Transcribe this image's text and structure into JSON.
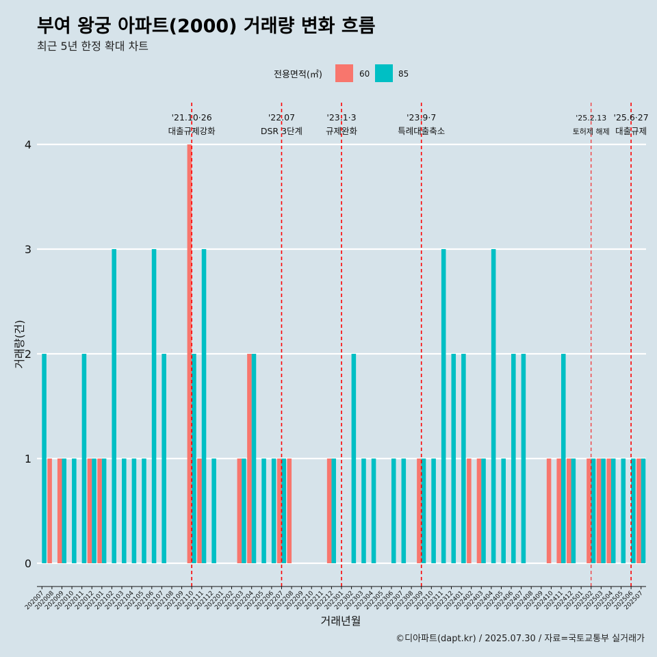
{
  "title": "부여 왕궁 아파트(2000) 거래량 변화 흐름",
  "subtitle": "최근 5년 한정 확대 차트",
  "caption": "©디아파트(dapt.kr) / 2025.07.30 / 자료=국토교통부 실거래가",
  "chart_data": {
    "type": "bar",
    "xlabel": "거래년월",
    "ylabel": "거래량(건)",
    "ylim": [
      0,
      4
    ],
    "yticks": [
      0,
      1,
      2,
      3,
      4
    ],
    "legend": {
      "title": "전용면적(㎡)",
      "position": "top"
    },
    "categories": [
      "202007",
      "202008",
      "202009",
      "202010",
      "202011",
      "202012",
      "202101",
      "202102",
      "202103",
      "202104",
      "202105",
      "202106",
      "202107",
      "202108",
      "202109",
      "202110",
      "202111",
      "202112",
      "202201",
      "202202",
      "202203",
      "202204",
      "202205",
      "202206",
      "202207",
      "202208",
      "202209",
      "202210",
      "202211",
      "202212",
      "202301",
      "202302",
      "202303",
      "202304",
      "202305",
      "202306",
      "202307",
      "202308",
      "202309",
      "202310",
      "202311",
      "202312",
      "202401",
      "202402",
      "202403",
      "202404",
      "202405",
      "202406",
      "202407",
      "202408",
      "202409",
      "202410",
      "202411",
      "202412",
      "202501",
      "202502",
      "202503",
      "202504",
      "202505",
      "202506",
      "202507"
    ],
    "series": [
      {
        "name": "60",
        "color": "#f8766d",
        "values": [
          0,
          1,
          1,
          0,
          0,
          1,
          1,
          0,
          0,
          0,
          0,
          0,
          0,
          0,
          0,
          4,
          1,
          0,
          0,
          0,
          1,
          2,
          0,
          0,
          1,
          1,
          0,
          0,
          0,
          1,
          0,
          0,
          0,
          0,
          0,
          0,
          0,
          0,
          1,
          0,
          0,
          0,
          0,
          1,
          1,
          0,
          0,
          0,
          0,
          0,
          0,
          1,
          1,
          1,
          0,
          1,
          1,
          1,
          0,
          0,
          1
        ]
      },
      {
        "name": "85",
        "color": "#00bfc4",
        "values": [
          2,
          0,
          1,
          1,
          2,
          1,
          1,
          3,
          1,
          1,
          1,
          3,
          2,
          0,
          0,
          2,
          3,
          1,
          0,
          0,
          1,
          2,
          1,
          1,
          1,
          0,
          0,
          0,
          0,
          1,
          0,
          2,
          1,
          1,
          0,
          1,
          1,
          0,
          1,
          1,
          3,
          2,
          2,
          0,
          1,
          3,
          1,
          2,
          2,
          0,
          0,
          0,
          2,
          1,
          0,
          1,
          1,
          1,
          1,
          1,
          1
        ]
      }
    ],
    "annotations": [
      {
        "x": "202110",
        "date": "'21.10·26",
        "label": "대출규제강화"
      },
      {
        "x": "202207",
        "date": "'22.07",
        "label": "DSR 3단계"
      },
      {
        "x": "202301",
        "date": "'23.1·3",
        "label": "규제완화"
      },
      {
        "x": "202309",
        "date": "'23.9·7",
        "label": "특례대출축소"
      },
      {
        "x": "202502",
        "date": "'25.2.13",
        "label": "토허제 해제"
      },
      {
        "x": "202506",
        "date": "'25.6·27",
        "label": "대출규제"
      }
    ]
  }
}
